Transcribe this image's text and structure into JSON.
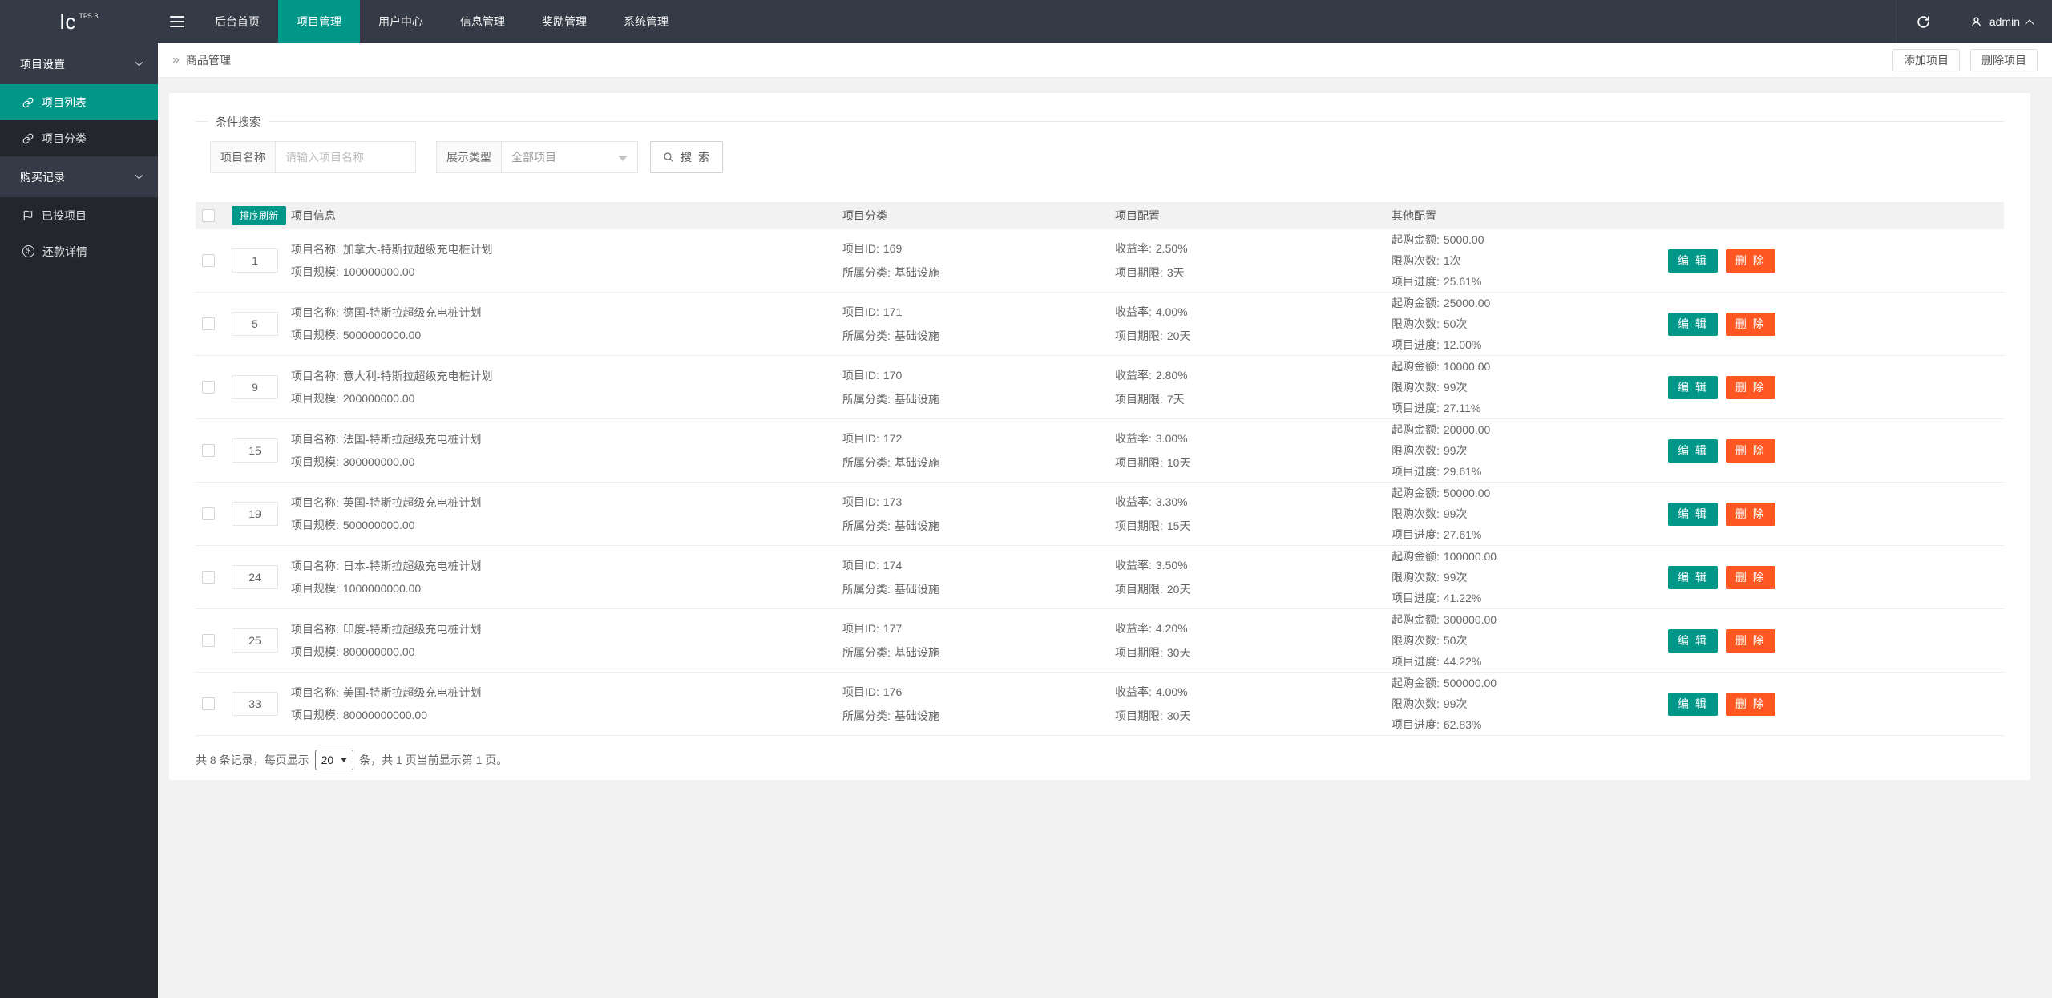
{
  "theme": {
    "navbar_bg": "#353b46",
    "sidebar_bg": "#23262c",
    "sidebar_group_bg": "#353b46",
    "accent": "#009688",
    "danger": "#FF5722",
    "content_bg": "#f2f2f2"
  },
  "navbar": {
    "logo_text": "lc",
    "logo_version": "TP5.3",
    "menu": [
      {
        "label": "后台首页",
        "active": false
      },
      {
        "label": "项目管理",
        "active": true
      },
      {
        "label": "用户中心",
        "active": false
      },
      {
        "label": "信息管理",
        "active": false
      },
      {
        "label": "奖励管理",
        "active": false
      },
      {
        "label": "系统管理",
        "active": false
      }
    ],
    "username": "admin"
  },
  "sidebar": {
    "items": [
      {
        "label": "项目设置",
        "type": "group",
        "icon": "chevron-down-icon",
        "active": false
      },
      {
        "label": "项目列表",
        "type": "item",
        "icon": "link-icon",
        "active": true
      },
      {
        "label": "项目分类",
        "type": "item",
        "icon": "link-icon",
        "active": false
      },
      {
        "label": "购买记录",
        "type": "group",
        "icon": "chevron-down-icon",
        "active": false
      },
      {
        "label": "已投项目",
        "type": "item",
        "icon": "flag-icon",
        "active": false
      },
      {
        "label": "还款详情",
        "type": "item",
        "icon": "dollar-icon",
        "active": false
      }
    ]
  },
  "breadcrumb": {
    "arrow": "»",
    "title": "商品管理"
  },
  "page_actions": {
    "add_label": "添加项目",
    "delete_label": "删除项目"
  },
  "search": {
    "legend": "条件搜索",
    "name_label": "项目名称",
    "name_placeholder": "请输入项目名称",
    "type_label": "展示类型",
    "type_value": "全部项目",
    "button_label": "搜 索"
  },
  "table": {
    "sort_refresh": "排序刷新",
    "headers": [
      "项目信息",
      "项目分类",
      "项目配置",
      "其他配置"
    ],
    "labels": {
      "name": "项目名称:",
      "scale": "项目规模:",
      "id": "项目ID:",
      "category": "所属分类:",
      "rate": "收益率:",
      "period": "项目期限:",
      "min": "起购金额:",
      "limit": "限购次数:",
      "progress": "项目进度:"
    },
    "actions": {
      "edit": "编 辑",
      "delete": "删 除"
    },
    "rows": [
      {
        "sort": "1",
        "name": "加拿大-特斯拉超级充电桩计划",
        "scale": "100000000.00",
        "id": "169",
        "category": "基础设施",
        "rate": "2.50%",
        "period": "3天",
        "min": "5000.00",
        "limit": "1次",
        "progress": "25.61%"
      },
      {
        "sort": "5",
        "name": "德国-特斯拉超级充电桩计划",
        "scale": "5000000000.00",
        "id": "171",
        "category": "基础设施",
        "rate": "4.00%",
        "period": "20天",
        "min": "25000.00",
        "limit": "50次",
        "progress": "12.00%"
      },
      {
        "sort": "9",
        "name": "意大利-特斯拉超级充电桩计划",
        "scale": "200000000.00",
        "id": "170",
        "category": "基础设施",
        "rate": "2.80%",
        "period": "7天",
        "min": "10000.00",
        "limit": "99次",
        "progress": "27.11%"
      },
      {
        "sort": "15",
        "name": "法国-特斯拉超级充电桩计划",
        "scale": "300000000.00",
        "id": "172",
        "category": "基础设施",
        "rate": "3.00%",
        "period": "10天",
        "min": "20000.00",
        "limit": "99次",
        "progress": "29.61%"
      },
      {
        "sort": "19",
        "name": "英国-特斯拉超级充电桩计划",
        "scale": "500000000.00",
        "id": "173",
        "category": "基础设施",
        "rate": "3.30%",
        "period": "15天",
        "min": "50000.00",
        "limit": "99次",
        "progress": "27.61%"
      },
      {
        "sort": "24",
        "name": "日本-特斯拉超级充电桩计划",
        "scale": "1000000000.00",
        "id": "174",
        "category": "基础设施",
        "rate": "3.50%",
        "period": "20天",
        "min": "100000.00",
        "limit": "99次",
        "progress": "41.22%"
      },
      {
        "sort": "25",
        "name": "印度-特斯拉超级充电桩计划",
        "scale": "800000000.00",
        "id": "177",
        "category": "基础设施",
        "rate": "4.20%",
        "period": "30天",
        "min": "300000.00",
        "limit": "50次",
        "progress": "44.22%"
      },
      {
        "sort": "33",
        "name": "美国-特斯拉超级充电桩计划",
        "scale": "80000000000.00",
        "id": "176",
        "category": "基础设施",
        "rate": "4.00%",
        "period": "30天",
        "min": "500000.00",
        "limit": "99次",
        "progress": "62.83%"
      }
    ]
  },
  "pagination": {
    "prefix": "共 8 条记录，每页显示",
    "size": "20",
    "suffix": "条，共 1 页当前显示第 1 页。"
  }
}
